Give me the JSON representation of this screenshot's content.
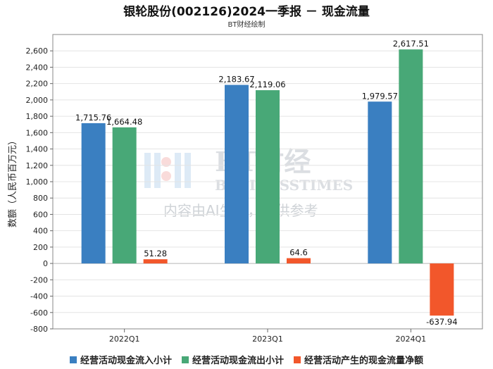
{
  "title": "银轮股份(002126)2024一季报 － 现金流量",
  "subtitle": "BT财经绘制",
  "watermark": {
    "line1": "BT财经",
    "line2": "BUSINESSTIMES",
    "line3": "内容由AI生成，仅供参考"
  },
  "colors": {
    "inflow": "#3a7fc1",
    "outflow": "#48a877",
    "net": "#f2572b"
  },
  "chart_data": {
    "type": "bar",
    "title": "银轮股份(002126)2024一季报 － 现金流量",
    "subtitle": "BT财经绘制",
    "ylabel": "数额（人民币百万元）",
    "xlabel": "",
    "categories": [
      "2022Q1",
      "2023Q1",
      "2024Q1"
    ],
    "ylim": [
      -800,
      2800
    ],
    "yticks": [
      -800,
      -600,
      -400,
      -200,
      0,
      200,
      400,
      600,
      800,
      1000,
      1200,
      1400,
      1600,
      1800,
      2000,
      2200,
      2400,
      2600
    ],
    "ytick_labels": [
      "-800",
      "-600",
      "-400",
      "-200",
      "0",
      "200",
      "400",
      "600",
      "800",
      "1,000",
      "1,200",
      "1,400",
      "1,600",
      "1,800",
      "2,000",
      "2,200",
      "2,400",
      "2,600"
    ],
    "grid": true,
    "legend_position": "bottom",
    "series": [
      {
        "name": "经营活动现金流入小计",
        "values": [
          1715.76,
          2183.67,
          1979.57
        ],
        "labels": [
          "1,715.76",
          "2,183.67",
          "1,979.57"
        ]
      },
      {
        "name": "经营活动现金流出小计",
        "values": [
          1664.48,
          2119.06,
          2617.51
        ],
        "labels": [
          "1,664.48",
          "2,119.06",
          "2,617.51"
        ]
      },
      {
        "name": "经营活动产生的现金流量净额",
        "values": [
          51.28,
          64.6,
          -637.94
        ],
        "labels": [
          "51.28",
          "64.6",
          "-637.94"
        ]
      }
    ]
  }
}
